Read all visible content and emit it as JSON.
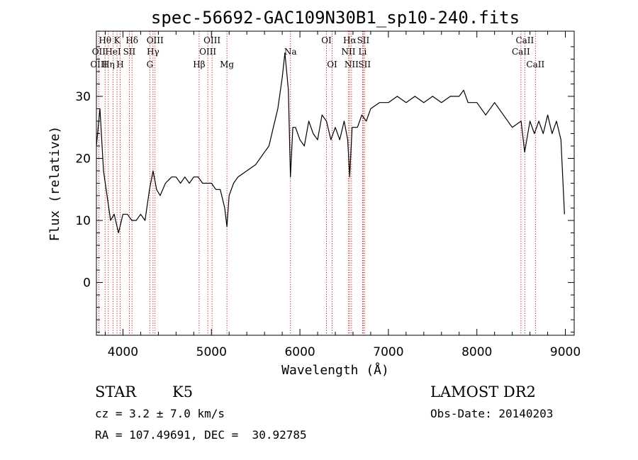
{
  "chart_data": {
    "type": "line",
    "title": "spec-56692-GAC109N30B1_sp10-240.fits",
    "xlabel": "Wavelength (Å)",
    "ylabel": "Flux (relative)",
    "xlim": [
      3700,
      9100
    ],
    "ylim": [
      -8.5,
      40.5
    ],
    "x_ticks": [
      4000,
      5000,
      6000,
      7000,
      8000,
      9000
    ],
    "y_ticks": [
      0,
      10,
      20,
      30
    ],
    "x_tick_labels": [
      "4000",
      "5000",
      "6000",
      "7000",
      "8000",
      "9000"
    ],
    "y_tick_labels": [
      "0",
      "10",
      "20",
      "30"
    ],
    "grid": false,
    "legend": "none",
    "series": [
      {
        "x": [
          3700,
          3740,
          3780,
          3820,
          3860,
          3900,
          3950,
          4000,
          4050,
          4100,
          4150,
          4200,
          4250,
          4300,
          4340,
          4380,
          4420,
          4480,
          4550,
          4600,
          4650,
          4700,
          4750,
          4800,
          4850,
          4900,
          4950,
          5000,
          5050,
          5100,
          5150,
          5175,
          5200,
          5250,
          5300,
          5400,
          5500,
          5550,
          5600,
          5650,
          5700,
          5750,
          5800,
          5830,
          5850,
          5870,
          5893,
          5920,
          5950,
          6000,
          6050,
          6100,
          6150,
          6200,
          6250,
          6300,
          6350,
          6400,
          6450,
          6500,
          6540,
          6563,
          6590,
          6650,
          6700,
          6750,
          6800,
          6900,
          7000,
          7100,
          7200,
          7300,
          7400,
          7500,
          7600,
          7700,
          7800,
          7850,
          7900,
          8000,
          8100,
          8200,
          8300,
          8400,
          8500,
          8540,
          8600,
          8650,
          8700,
          8750,
          8800,
          8850,
          8900,
          8950,
          8990
        ],
        "y": [
          22,
          28,
          18,
          14,
          10,
          11,
          8,
          11,
          11,
          10,
          10,
          11,
          10,
          15,
          18,
          15,
          14,
          16,
          17,
          17,
          16,
          17,
          16,
          17,
          17,
          16,
          16,
          16,
          15,
          15,
          12,
          9,
          14,
          16,
          17,
          18,
          19,
          20,
          21,
          22,
          25,
          28,
          33,
          37,
          34,
          31,
          17,
          25,
          25,
          23,
          22,
          26,
          24,
          23,
          27,
          26,
          23,
          25,
          23,
          26,
          23,
          17,
          25,
          25,
          27,
          26,
          28,
          29,
          29,
          30,
          29,
          30,
          29,
          30,
          29,
          30,
          30,
          31,
          29,
          29,
          27,
          29,
          27,
          25,
          26,
          21,
          26,
          24,
          26,
          24,
          27,
          24,
          26,
          23,
          11
        ],
        "color": "#000000"
      }
    ],
    "spectral_lines": [
      {
        "label": "Hθ",
        "wavelength": 3798,
        "row": 1
      },
      {
        "label": "OII",
        "wavelength": 3727,
        "row": 2
      },
      {
        "label": "HeI",
        "wavelength": 3889,
        "row": 2
      },
      {
        "label": "OIII",
        "wavelength": 3727,
        "row": 3
      },
      {
        "label": "Hη",
        "wavelength": 3835,
        "row": 3
      },
      {
        "label": "K",
        "wavelength": 3933,
        "row": 1
      },
      {
        "label": "Hδ",
        "wavelength": 4102,
        "row": 1
      },
      {
        "label": "SII",
        "wavelength": 4072,
        "row": 2
      },
      {
        "label": "H",
        "wavelength": 3968,
        "row": 3
      },
      {
        "label": "OIII",
        "wavelength": 4363,
        "row": 1
      },
      {
        "label": "Hγ",
        "wavelength": 4340,
        "row": 2
      },
      {
        "label": "G",
        "wavelength": 4304,
        "row": 3
      },
      {
        "label": "OIII",
        "wavelength": 5007,
        "row": 1
      },
      {
        "label": "OIII",
        "wavelength": 4959,
        "row": 2
      },
      {
        "label": "Hβ",
        "wavelength": 4861,
        "row": 3
      },
      {
        "label": "Mg",
        "wavelength": 5175,
        "row": 3
      },
      {
        "label": "Na",
        "wavelength": 5893,
        "row": 2
      },
      {
        "label": "OI",
        "wavelength": 6300,
        "row": 1
      },
      {
        "label": "OI",
        "wavelength": 6364,
        "row": 3
      },
      {
        "label": "Hα",
        "wavelength": 6563,
        "row": 1
      },
      {
        "label": "SII",
        "wavelength": 6716,
        "row": 1
      },
      {
        "label": "NII",
        "wavelength": 6548,
        "row": 2
      },
      {
        "label": "Li",
        "wavelength": 6708,
        "row": 2
      },
      {
        "label": "NII",
        "wavelength": 6583,
        "row": 3
      },
      {
        "label": "SII",
        "wavelength": 6731,
        "row": 3
      },
      {
        "label": "CaII",
        "wavelength": 8542,
        "row": 1
      },
      {
        "label": "CaII",
        "wavelength": 8498,
        "row": 2
      },
      {
        "label": "CaII",
        "wavelength": 8662,
        "row": 3
      }
    ]
  },
  "info": {
    "object_class": "STAR",
    "subclass": "K5",
    "survey": "LAMOST DR2",
    "redshift": "cz = 3.2 ± 7.0 km/s",
    "obs_date": "Obs-Date: 20140203",
    "coordinates": "RA = 107.49691, DEC =  30.92785"
  },
  "colors": {
    "spectrum": "#000000",
    "line_markers": "#c00000",
    "frame": "#000000"
  }
}
